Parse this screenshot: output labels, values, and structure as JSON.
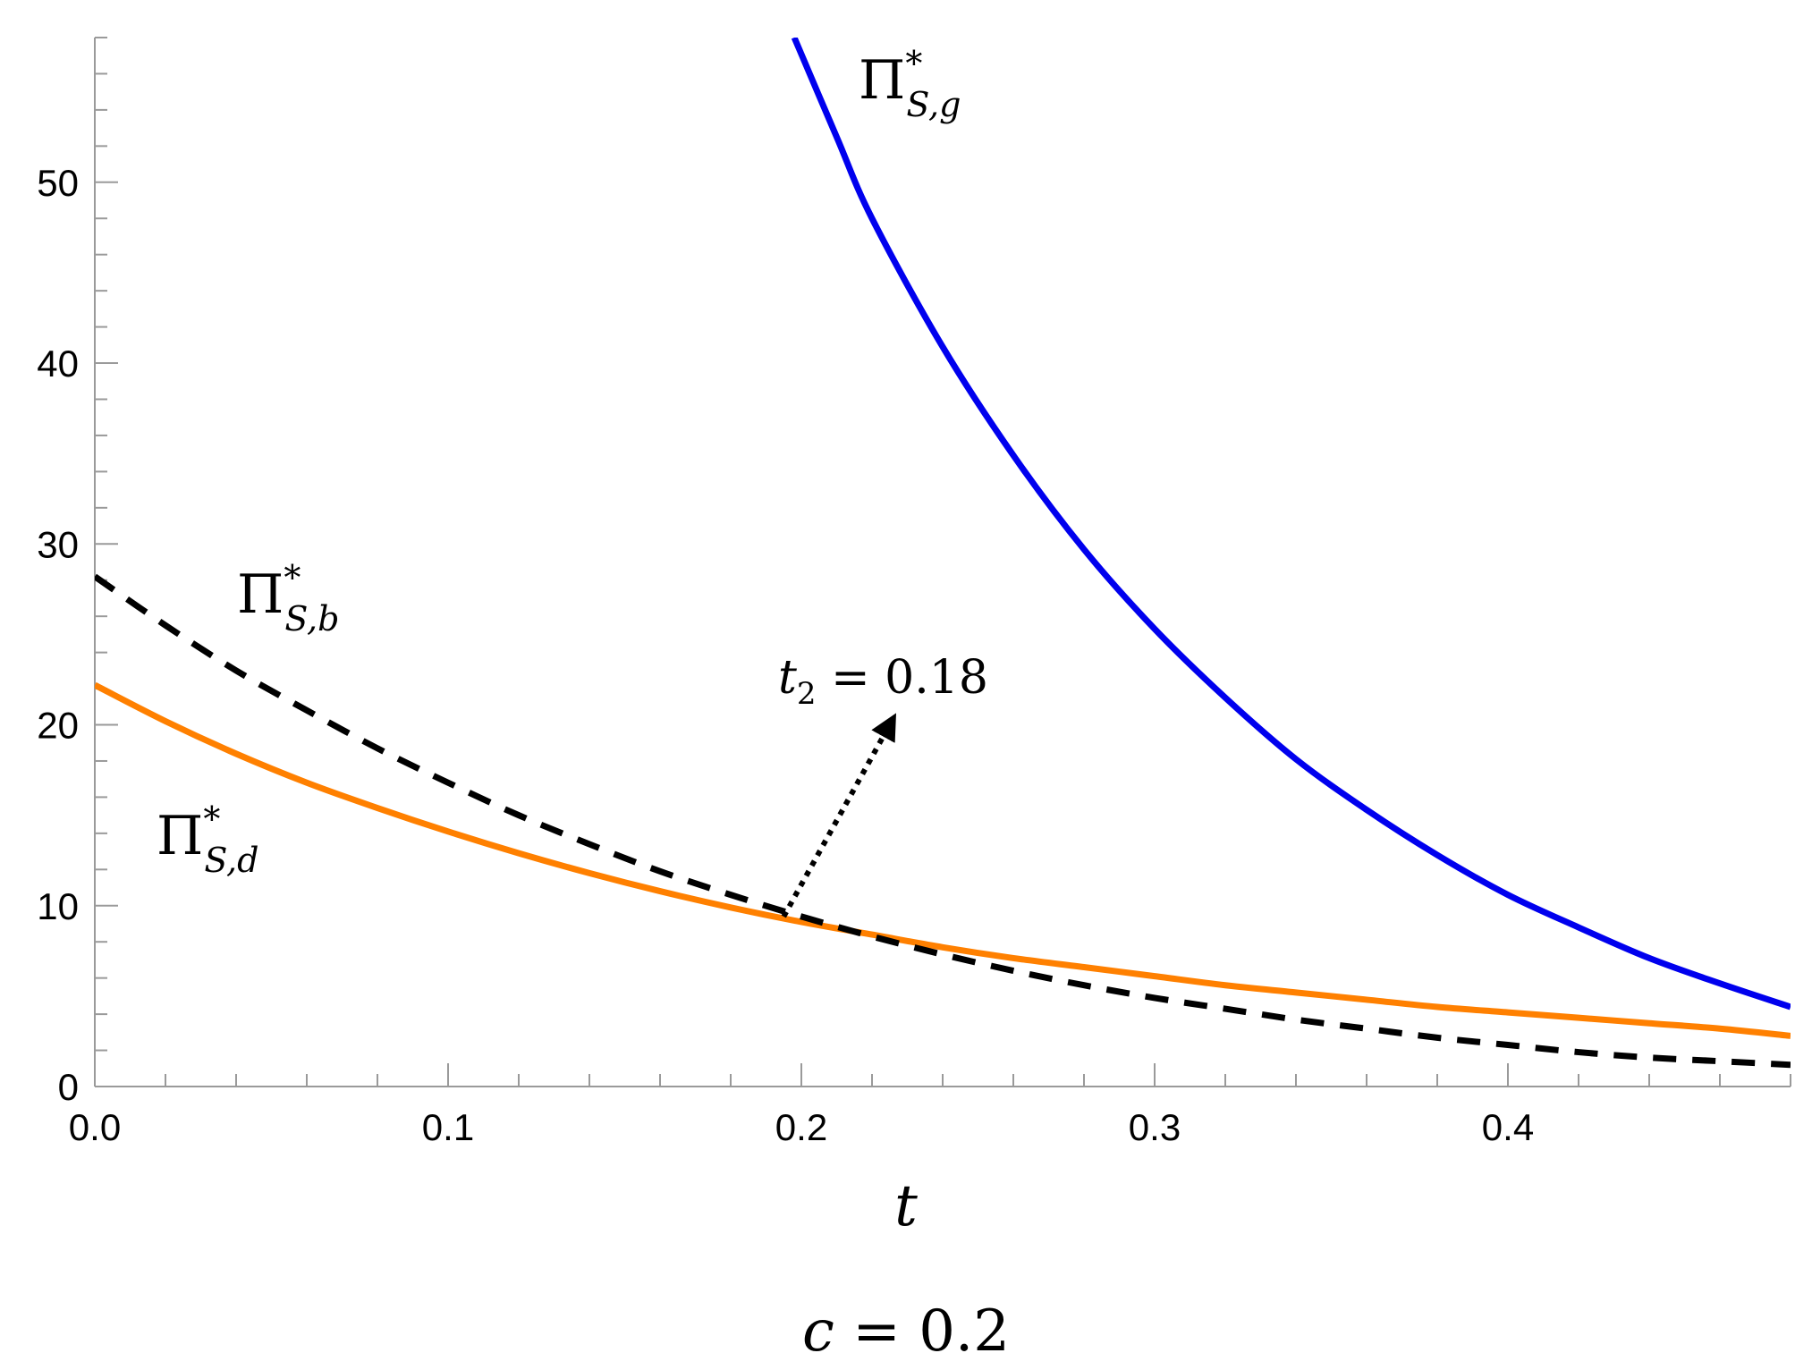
{
  "chart_data": {
    "type": "line",
    "caption": {
      "var": "c",
      "rel": " = 0.2"
    },
    "xlabel": "t",
    "xlim": [
      0,
      0.48
    ],
    "ylim": [
      0,
      58
    ],
    "x_ticks": {
      "major": [
        0,
        0.1,
        0.2,
        0.3,
        0.4
      ],
      "minor_step": 0.02
    },
    "y_ticks": {
      "major": [
        0,
        10,
        20,
        30,
        40,
        50
      ],
      "minor_step": 2
    },
    "x_tick_labels": [
      "0.0",
      "0.1",
      "0.2",
      "0.3",
      "0.4"
    ],
    "y_tick_labels": [
      "0",
      "10",
      "20",
      "30",
      "40",
      "50"
    ],
    "grid": false,
    "series": [
      {
        "key": "g",
        "label": {
          "base": "Π",
          "sup": "*",
          "sub": "S,g"
        },
        "color": "#0000ee",
        "style": "solid",
        "x": [
          0.198,
          0.21,
          0.22,
          0.24,
          0.26,
          0.28,
          0.3,
          0.32,
          0.34,
          0.36,
          0.38,
          0.4,
          0.42,
          0.44,
          0.46,
          0.48
        ],
        "y": [
          58.0,
          52.5,
          48.0,
          40.9,
          34.9,
          29.7,
          25.3,
          21.5,
          18.1,
          15.3,
          12.8,
          10.6,
          8.8,
          7.1,
          5.7,
          4.4
        ]
      },
      {
        "key": "b",
        "label": {
          "base": "Π",
          "sup": "*",
          "sub": "S,b"
        },
        "color": "#000000",
        "style": "dashed",
        "x": [
          0.0,
          0.02,
          0.04,
          0.06,
          0.08,
          0.1,
          0.12,
          0.14,
          0.16,
          0.18,
          0.2,
          0.22,
          0.24,
          0.26,
          0.28,
          0.3,
          0.32,
          0.34,
          0.36,
          0.38,
          0.4,
          0.42,
          0.44,
          0.46,
          0.48
        ],
        "y": [
          28.2,
          25.5,
          23.0,
          20.8,
          18.7,
          16.8,
          15.0,
          13.4,
          11.9,
          10.6,
          9.4,
          8.3,
          7.3,
          6.4,
          5.6,
          4.9,
          4.3,
          3.7,
          3.2,
          2.7,
          2.3,
          1.9,
          1.6,
          1.4,
          1.2
        ]
      },
      {
        "key": "d",
        "label": {
          "base": "Π",
          "sup": "*",
          "sub": "S,d"
        },
        "color": "#ff8000",
        "style": "solid",
        "x": [
          0.0,
          0.02,
          0.04,
          0.06,
          0.08,
          0.1,
          0.12,
          0.14,
          0.16,
          0.18,
          0.2,
          0.22,
          0.24,
          0.26,
          0.28,
          0.3,
          0.32,
          0.34,
          0.36,
          0.38,
          0.4,
          0.42,
          0.44,
          0.46,
          0.48
        ],
        "y": [
          22.2,
          20.2,
          18.4,
          16.8,
          15.4,
          14.1,
          12.9,
          11.8,
          10.8,
          9.9,
          9.1,
          8.4,
          7.7,
          7.1,
          6.6,
          6.1,
          5.6,
          5.2,
          4.8,
          4.4,
          4.1,
          3.8,
          3.5,
          3.2,
          2.8
        ]
      }
    ],
    "annotation": {
      "var": "t",
      "sub": "2",
      "rel": " = 0.18",
      "point_x": 0.195,
      "point_y": 9.4,
      "arrow_to_x": 0.225,
      "arrow_to_y": 20.0
    }
  }
}
